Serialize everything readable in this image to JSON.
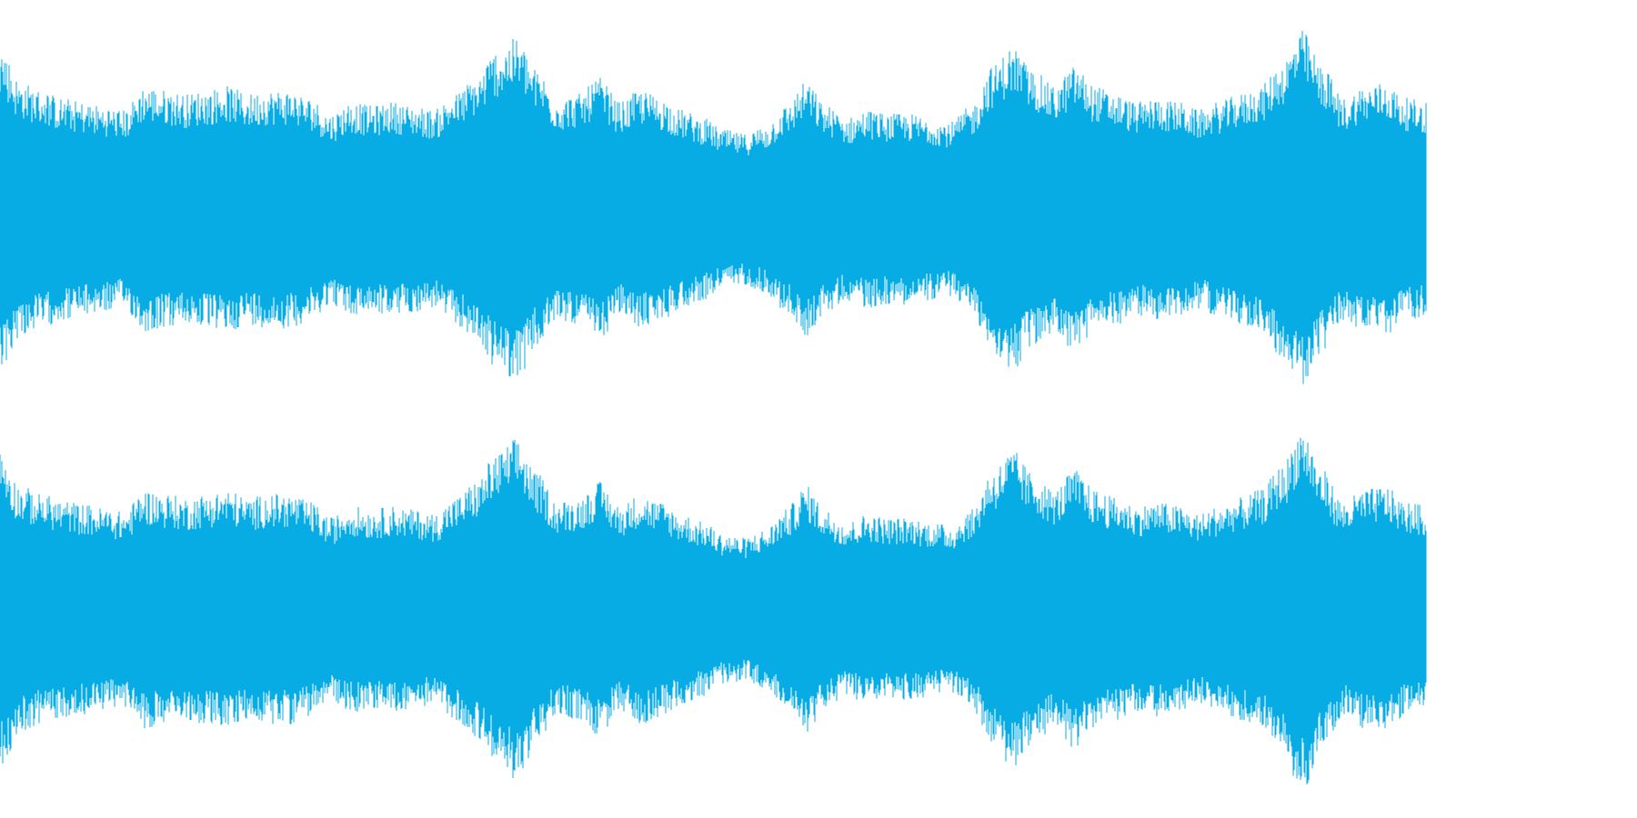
{
  "waveform": {
    "color": "#06ace3",
    "background": "#ffffff",
    "channels": [
      {
        "name": "",
        "envelope": [
          0.82,
          0.64,
          0.6,
          0.56,
          0.54,
          0.52,
          0.5,
          0.62,
          0.6,
          0.58,
          0.6,
          0.62,
          0.58,
          0.6,
          0.6,
          0.56,
          0.48,
          0.54,
          0.52,
          0.54,
          0.52,
          0.5,
          0.58,
          0.66,
          0.8,
          0.86,
          0.7,
          0.56,
          0.58,
          0.66,
          0.54,
          0.6,
          0.56,
          0.5,
          0.46,
          0.4,
          0.38,
          0.42,
          0.52,
          0.64,
          0.52,
          0.46,
          0.5,
          0.48,
          0.48,
          0.46,
          0.44,
          0.52,
          0.72,
          0.82,
          0.7,
          0.62,
          0.72,
          0.62,
          0.58,
          0.54,
          0.56,
          0.54,
          0.5,
          0.54,
          0.58,
          0.62,
          0.74,
          0.9,
          0.72,
          0.56,
          0.62,
          0.64,
          0.56,
          0.54
        ]
      },
      {
        "name": "",
        "envelope": [
          0.8,
          0.62,
          0.58,
          0.55,
          0.53,
          0.51,
          0.49,
          0.6,
          0.58,
          0.56,
          0.58,
          0.6,
          0.56,
          0.58,
          0.58,
          0.54,
          0.46,
          0.52,
          0.5,
          0.52,
          0.5,
          0.48,
          0.56,
          0.64,
          0.78,
          0.86,
          0.68,
          0.54,
          0.56,
          0.64,
          0.52,
          0.58,
          0.54,
          0.48,
          0.44,
          0.38,
          0.36,
          0.4,
          0.5,
          0.62,
          0.5,
          0.44,
          0.48,
          0.46,
          0.46,
          0.44,
          0.42,
          0.5,
          0.7,
          0.8,
          0.68,
          0.6,
          0.7,
          0.6,
          0.56,
          0.52,
          0.54,
          0.52,
          0.48,
          0.52,
          0.56,
          0.6,
          0.72,
          0.92,
          0.7,
          0.54,
          0.6,
          0.62,
          0.54,
          0.52
        ]
      }
    ]
  }
}
